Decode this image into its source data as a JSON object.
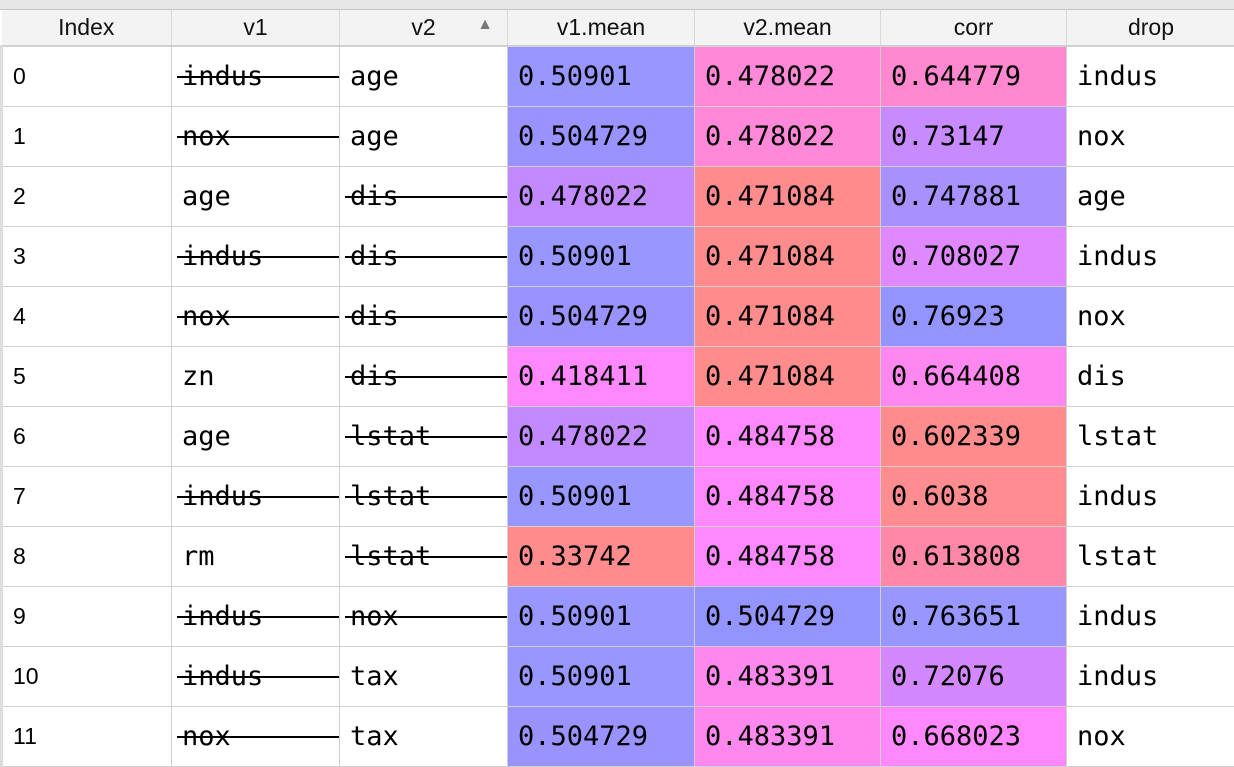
{
  "columns": [
    "Index",
    "v1",
    "v2",
    "v1.mean",
    "v2.mean",
    "corr",
    "drop"
  ],
  "sort": {
    "column": "v2",
    "direction": "ascending",
    "icon": "sort-ascending-icon"
  },
  "rows": [
    {
      "index": "0",
      "v1": "indus",
      "v2": "age",
      "v1_mean": "0.50901",
      "v2_mean": "0.478022",
      "corr": "0.644779",
      "drop": "indus",
      "v1_struck": true,
      "v2_struck": false,
      "colors": [
        "#9797ff",
        "#ff88d8",
        "#ff88d0"
      ]
    },
    {
      "index": "1",
      "v1": "nox",
      "v2": "age",
      "v1_mean": "0.504729",
      "v2_mean": "0.478022",
      "corr": "0.73147",
      "drop": "nox",
      "v1_struck": true,
      "v2_struck": false,
      "colors": [
        "#9a93ff",
        "#ff88d8",
        "#c88aff"
      ]
    },
    {
      "index": "2",
      "v1": "age",
      "v2": "dis",
      "v1_mean": "0.478022",
      "v2_mean": "0.471084",
      "corr": "0.747881",
      "drop": "age",
      "v1_struck": false,
      "v2_struck": true,
      "colors": [
        "#c38aff",
        "#ff8c8c",
        "#a890ff"
      ]
    },
    {
      "index": "3",
      "v1": "indus",
      "v2": "dis",
      "v1_mean": "0.50901",
      "v2_mean": "0.471084",
      "corr": "0.708027",
      "drop": "indus",
      "v1_struck": true,
      "v2_struck": true,
      "colors": [
        "#9797ff",
        "#ff8c8c",
        "#e088ff"
      ]
    },
    {
      "index": "4",
      "v1": "nox",
      "v2": "dis",
      "v1_mean": "0.504729",
      "v2_mean": "0.471084",
      "corr": "0.76923",
      "drop": "nox",
      "v1_struck": true,
      "v2_struck": true,
      "colors": [
        "#9a93ff",
        "#ff8c8c",
        "#9494ff"
      ]
    },
    {
      "index": "5",
      "v1": "zn",
      "v2": "dis",
      "v1_mean": "0.418411",
      "v2_mean": "0.471084",
      "corr": "0.664408",
      "drop": "dis",
      "v1_struck": false,
      "v2_struck": true,
      "colors": [
        "#ff88ff",
        "#ff8c8c",
        "#ff88f0"
      ]
    },
    {
      "index": "6",
      "v1": "age",
      "v2": "lstat",
      "v1_mean": "0.478022",
      "v2_mean": "0.484758",
      "corr": "0.602339",
      "drop": "lstat",
      "v1_struck": false,
      "v2_struck": true,
      "colors": [
        "#c38aff",
        "#ff88ff",
        "#ff8c8c"
      ]
    },
    {
      "index": "7",
      "v1": "indus",
      "v2": "lstat",
      "v1_mean": "0.50901",
      "v2_mean": "0.484758",
      "corr": "0.6038",
      "drop": "indus",
      "v1_struck": true,
      "v2_struck": true,
      "colors": [
        "#9797ff",
        "#ff88ff",
        "#ff8c8e"
      ]
    },
    {
      "index": "8",
      "v1": "rm",
      "v2": "lstat",
      "v1_mean": "0.33742",
      "v2_mean": "0.484758",
      "corr": "0.613808",
      "drop": "lstat",
      "v1_struck": false,
      "v2_struck": true,
      "colors": [
        "#ff8c8c",
        "#ff88ff",
        "#ff88a8"
      ]
    },
    {
      "index": "9",
      "v1": "indus",
      "v2": "nox",
      "v1_mean": "0.50901",
      "v2_mean": "0.504729",
      "corr": "0.763651",
      "drop": "indus",
      "v1_struck": true,
      "v2_struck": true,
      "colors": [
        "#9797ff",
        "#9494ff",
        "#9896ff"
      ]
    },
    {
      "index": "10",
      "v1": "indus",
      "v2": "tax",
      "v1_mean": "0.50901",
      "v2_mean": "0.483391",
      "corr": "0.72076",
      "drop": "indus",
      "v1_struck": true,
      "v2_struck": false,
      "colors": [
        "#9797ff",
        "#ff88ef",
        "#d488ff"
      ]
    },
    {
      "index": "11",
      "v1": "nox",
      "v2": "tax",
      "v1_mean": "0.504729",
      "v2_mean": "0.483391",
      "corr": "0.668023",
      "drop": "nox",
      "v1_struck": true,
      "v2_struck": false,
      "colors": [
        "#9a93ff",
        "#ff88ef",
        "#ff88ff"
      ]
    }
  ]
}
